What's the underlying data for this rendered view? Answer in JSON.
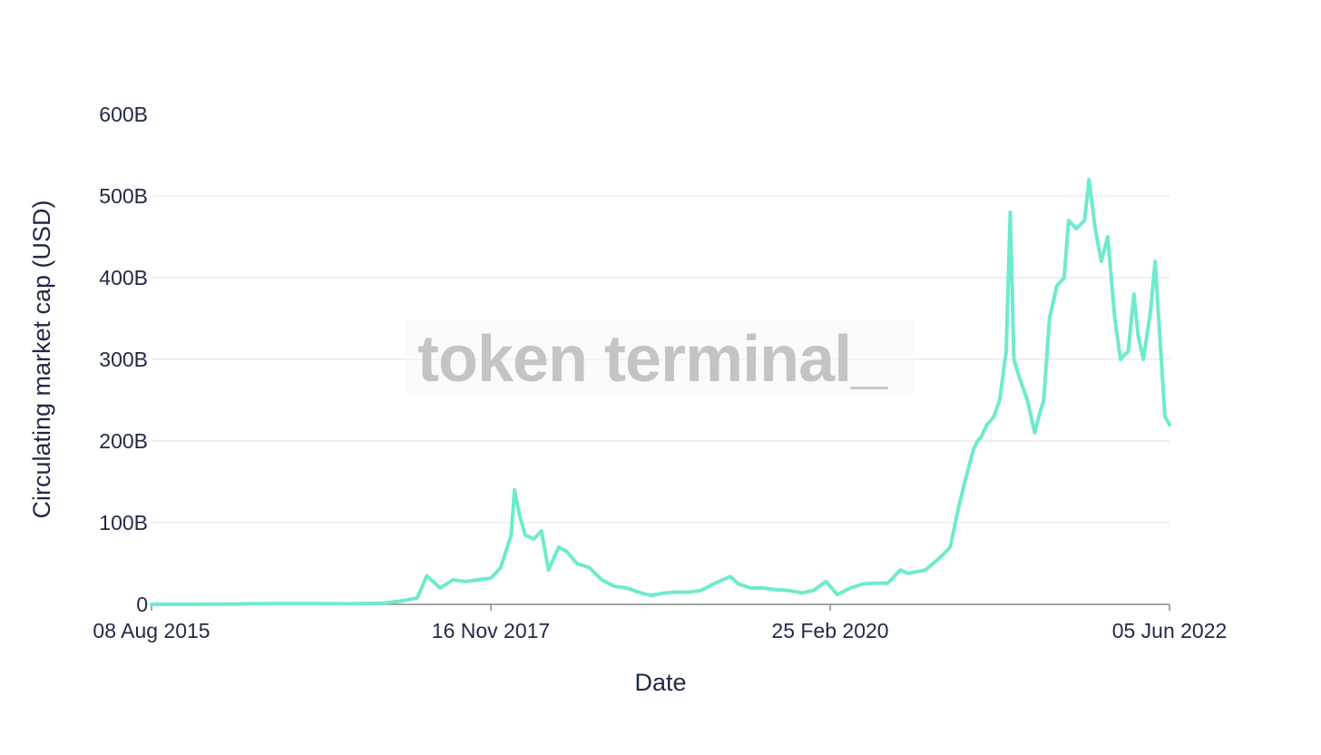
{
  "chart_data": {
    "type": "line",
    "title": "",
    "xlabel": "Date",
    "ylabel": "Circulating market cap (USD)",
    "watermark": "token terminal_",
    "x_tick_labels": [
      "08 Aug 2015",
      "16 Nov 2017",
      "25 Feb 2020",
      "05 Jun 2022"
    ],
    "x_ticks": [
      "2015-08-08",
      "2017-11-16",
      "2020-02-25",
      "2022-06-05"
    ],
    "xlim": [
      "2015-08-08",
      "2022-06-05"
    ],
    "y_ticks": [
      0,
      100,
      200,
      300,
      400,
      500,
      600
    ],
    "y_tick_labels": [
      "0",
      "100B",
      "200B",
      "300B",
      "400B",
      "500B",
      "600B"
    ],
    "ylim": [
      0,
      600
    ],
    "y_unit": "B",
    "grid": true,
    "colors": {
      "line": "#6eebcc",
      "grid": "#e5ecf6",
      "axis": "#8a8a8a",
      "text": "#1f2a44",
      "watermark": "#c4c4c4"
    },
    "series": [
      {
        "x": [
          "2015-08-08",
          "2015-10-01",
          "2016-01-01",
          "2016-03-14",
          "2016-06-17",
          "2016-09-01",
          "2016-12-01",
          "2017-03-01",
          "2017-04-15",
          "2017-05-20",
          "2017-06-12",
          "2017-07-15",
          "2017-08-15",
          "2017-09-15",
          "2017-10-15",
          "2017-11-16",
          "2017-12-10",
          "2018-01-05",
          "2018-01-13",
          "2018-01-25",
          "2018-02-08",
          "2018-03-01",
          "2018-03-20",
          "2018-04-06",
          "2018-05-01",
          "2018-05-20",
          "2018-06-15",
          "2018-07-15",
          "2018-08-15",
          "2018-09-15",
          "2018-10-15",
          "2018-11-25",
          "2018-12-14",
          "2019-01-15",
          "2019-02-15",
          "2019-03-15",
          "2019-04-15",
          "2019-05-15",
          "2019-06-26",
          "2019-07-15",
          "2019-08-15",
          "2019-09-15",
          "2019-10-15",
          "2019-11-15",
          "2019-12-18",
          "2020-01-15",
          "2020-02-15",
          "2020-03-13",
          "2020-04-15",
          "2020-05-15",
          "2020-06-15",
          "2020-07-15",
          "2020-08-15",
          "2020-09-02",
          "2020-10-15",
          "2020-11-15",
          "2020-12-15",
          "2021-01-05",
          "2021-01-20",
          "2021-02-10",
          "2021-02-20",
          "2021-03-01",
          "2021-03-15",
          "2021-04-01",
          "2021-04-15",
          "2021-05-01",
          "2021-05-11",
          "2021-05-20",
          "2021-06-01",
          "2021-06-22",
          "2021-07-10",
          "2021-07-20",
          "2021-08-01",
          "2021-08-15",
          "2021-09-02",
          "2021-09-20",
          "2021-10-01",
          "2021-10-20",
          "2021-11-09",
          "2021-11-20",
          "2021-12-05",
          "2021-12-20",
          "2022-01-05",
          "2022-01-22",
          "2022-02-05",
          "2022-02-24",
          "2022-03-10",
          "2022-03-20",
          "2022-04-02",
          "2022-04-20",
          "2022-05-01",
          "2022-05-12",
          "2022-05-25",
          "2022-06-05"
        ],
        "y": [
          0.1,
          0.1,
          0.2,
          0.6,
          1,
          1,
          0.7,
          1.5,
          4.5,
          8,
          35,
          20,
          30,
          28,
          30,
          32,
          45,
          85,
          140,
          110,
          85,
          80,
          90,
          42,
          70,
          65,
          50,
          45,
          30,
          22,
          20,
          13,
          11,
          14,
          15,
          15,
          17,
          25,
          34,
          25,
          20,
          20,
          18,
          17,
          14,
          17,
          28,
          12,
          20,
          25,
          26,
          26,
          42,
          38,
          42,
          55,
          70,
          120,
          150,
          190,
          200,
          205,
          220,
          230,
          250,
          310,
          480,
          300,
          280,
          250,
          210,
          230,
          250,
          350,
          390,
          400,
          470,
          460,
          470,
          520,
          460,
          420,
          450,
          350,
          300,
          310,
          380,
          330,
          300,
          360,
          420,
          330,
          230,
          220
        ]
      }
    ]
  }
}
